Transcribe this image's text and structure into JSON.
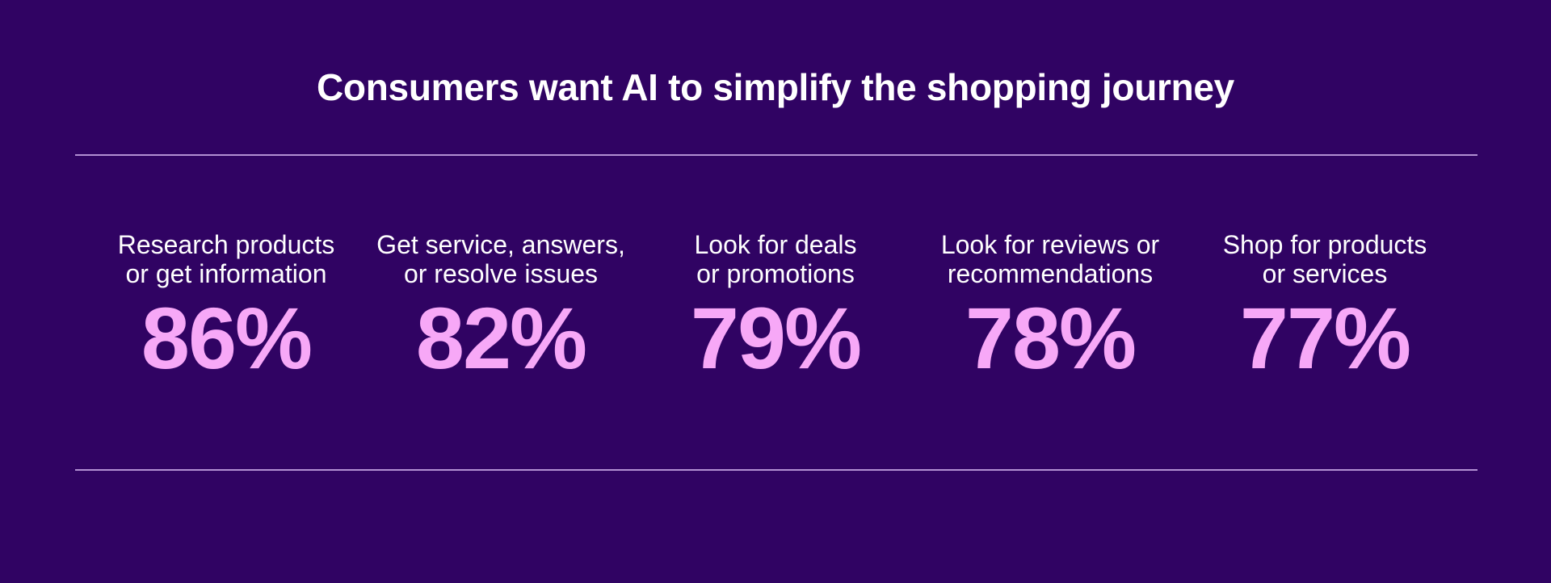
{
  "title": "Consumers want AI to simplify the shopping journey",
  "colors": {
    "background": "#300363",
    "accent": "#f7a8f7",
    "rule": "#c9a9e6",
    "text": "#ffffff"
  },
  "stats": [
    {
      "label": "Research products\nor get information",
      "value": "86%"
    },
    {
      "label": "Get service, answers,\nor resolve issues",
      "value": "82%"
    },
    {
      "label": "Look for deals\nor promotions",
      "value": "79%"
    },
    {
      "label": "Look for reviews or\nrecommendations",
      "value": "78%"
    },
    {
      "label": "Shop for products\nor services",
      "value": "77%"
    }
  ],
  "chart_data": {
    "type": "table",
    "title": "Consumers want AI to simplify the shopping journey",
    "categories": [
      "Research products or get information",
      "Get service, answers, or resolve issues",
      "Look for deals or promotions",
      "Look for reviews or recommendations",
      "Shop for products or services"
    ],
    "values": [
      86,
      82,
      79,
      78,
      77
    ],
    "unit": "%"
  }
}
